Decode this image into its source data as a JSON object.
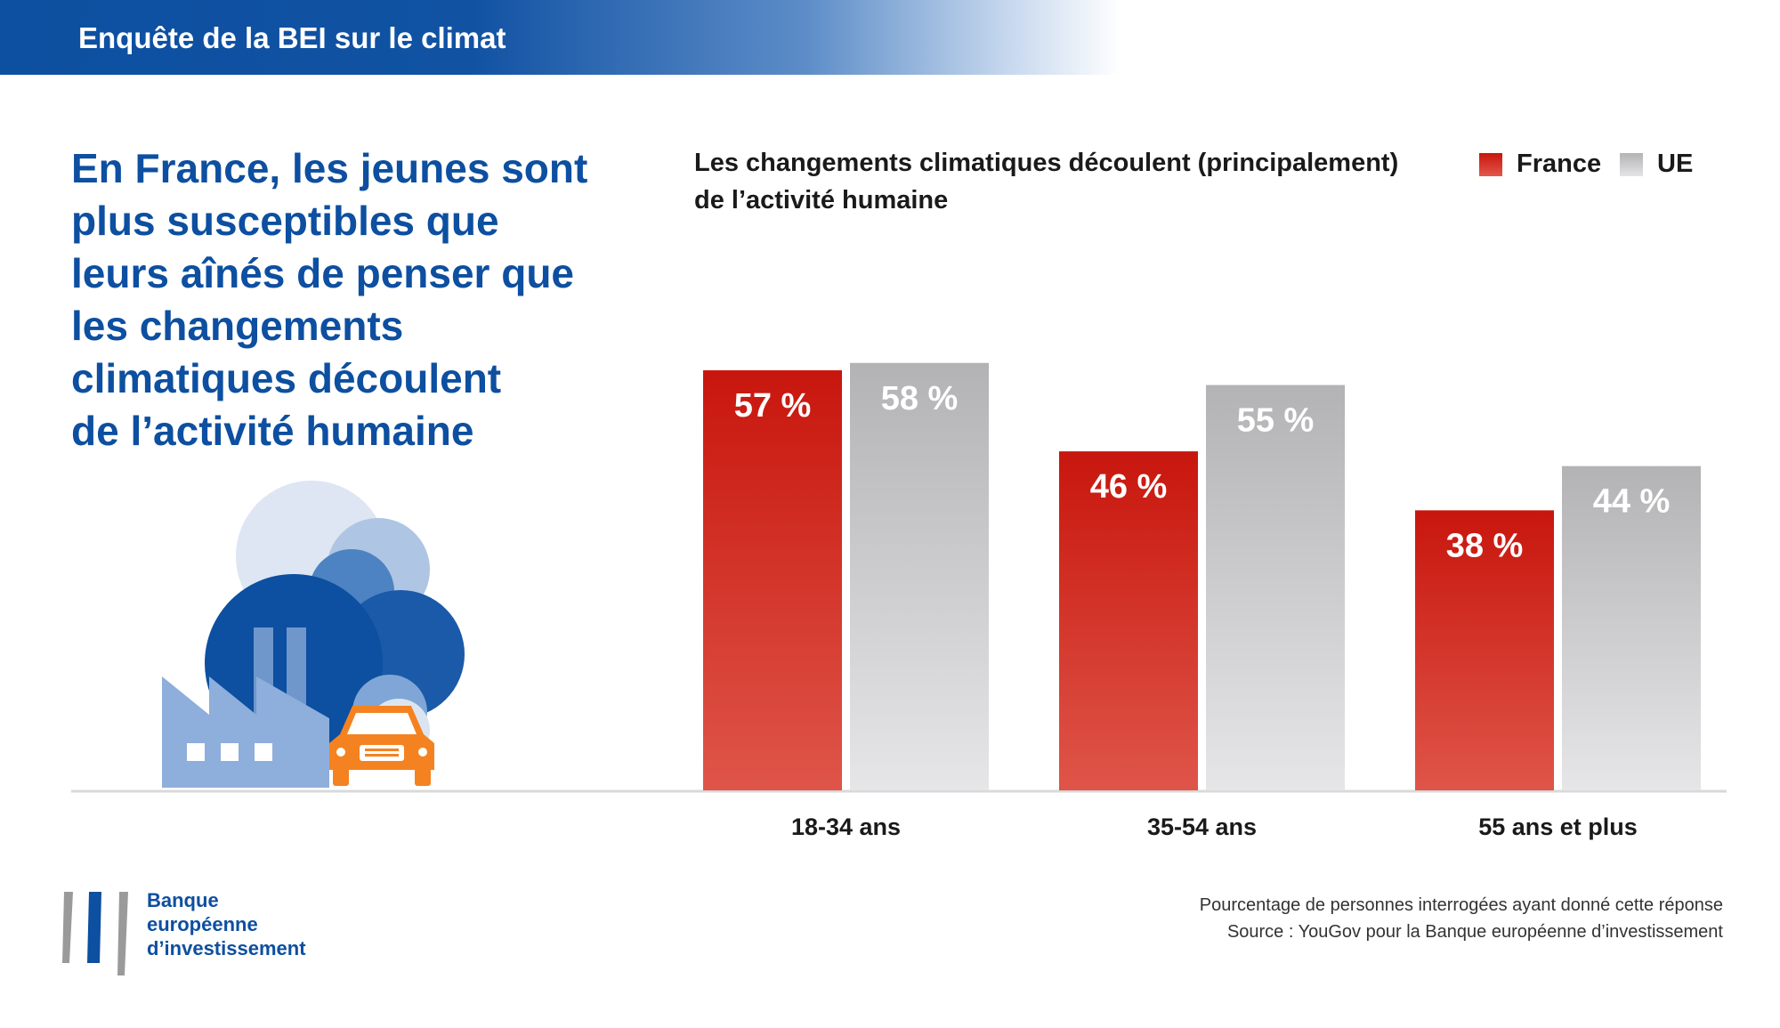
{
  "header": {
    "title": "Enquête de la BEI sur le climat"
  },
  "headline": {
    "lines": [
      "En France, les jeunes sont",
      "plus susceptibles que",
      "leurs aînés de penser que",
      "les changements",
      "climatiques découlent",
      "de l’activité humaine"
    ]
  },
  "chart_data": {
    "type": "bar",
    "title_lines": [
      "Les changements climatiques découlent (principalement)",
      "de l’activité humaine"
    ],
    "categories": [
      "18-34 ans",
      "35-54 ans",
      "55 ans et plus"
    ],
    "series": [
      {
        "name": "France",
        "values": [
          57,
          46,
          38
        ],
        "labels": [
          "57 %",
          "46 %",
          "38 %"
        ],
        "color": "#c8160d"
      },
      {
        "name": "UE",
        "values": [
          58,
          55,
          44
        ],
        "labels": [
          "58 %",
          "55 %",
          "44 %"
        ],
        "color": "#b3b3b5"
      }
    ],
    "ylim": [
      0,
      60
    ],
    "xlabel": "",
    "ylabel": "",
    "grid": false,
    "legend_position": "top-right"
  },
  "footnote": {
    "line1": "Pourcentage de personnes interrogées ayant donné cette réponse",
    "line2": "Source : YouGov pour la Banque européenne d’investissement"
  },
  "logo": {
    "lines": [
      "Banque",
      "européenne",
      "d’investissement"
    ]
  },
  "illustration": {
    "icons": [
      "factory-icon",
      "car-icon",
      "smoke-cloud-icon"
    ]
  },
  "colors": {
    "brand_blue": "#0d4fa0",
    "france_red": "#c8160d",
    "eu_grey": "#b3b3b5",
    "car_orange": "#f58220"
  }
}
